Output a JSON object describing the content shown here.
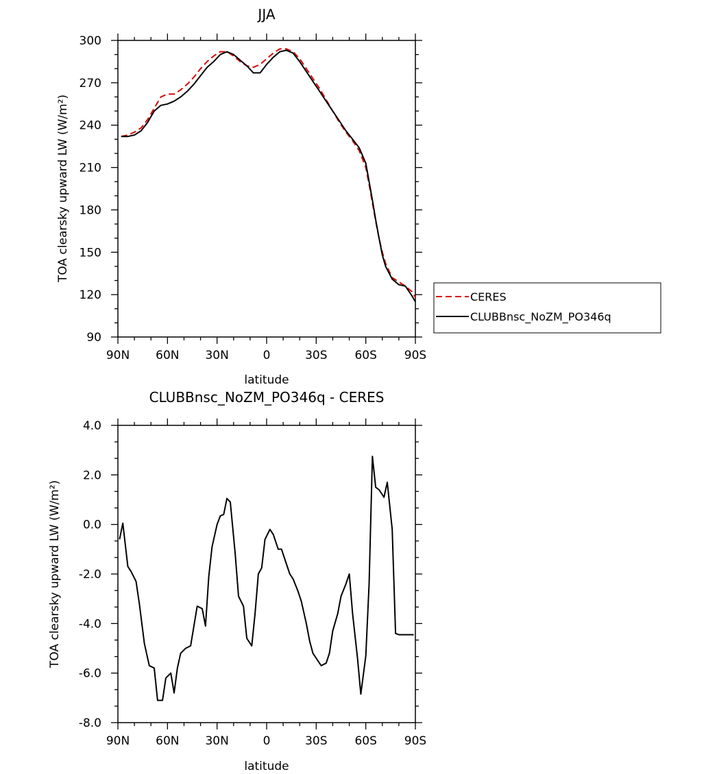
{
  "chart_data": [
    {
      "type": "line",
      "title": "JJA",
      "xlabel": "latitude",
      "ylabel": "TOA clearsky upward LW (W/m²)",
      "ylim": [
        90,
        300
      ],
      "yticks": [
        "300",
        "270",
        "240",
        "210",
        "180",
        "150",
        "120",
        "90"
      ],
      "xlim": [
        90,
        -90
      ],
      "xticks": [
        "90N",
        "60N",
        "30N",
        "0",
        "30S",
        "60S",
        "90S"
      ],
      "legend_position": "right",
      "series": [
        {
          "name": "CERES",
          "color": "#dd0000",
          "dash": "dashed",
          "x": [
            88,
            84,
            80,
            76,
            72,
            68,
            64,
            60,
            56,
            52,
            48,
            44,
            40,
            36,
            32,
            28,
            24,
            20,
            16,
            12,
            8,
            4,
            0,
            -4,
            -8,
            -12,
            -16,
            -20,
            -24,
            -28,
            -32,
            -36,
            -40,
            -44,
            -48,
            -52,
            -56,
            -60,
            -62,
            -64,
            -66,
            -68,
            -70,
            -72,
            -76,
            -80,
            -84,
            -88,
            -90
          ],
          "y": [
            232,
            233,
            235,
            238,
            244,
            252,
            260,
            262,
            262,
            265,
            269,
            274,
            280,
            285,
            289,
            292,
            292,
            289,
            285,
            282,
            281,
            283,
            287,
            291,
            294,
            294,
            292,
            287,
            280,
            273,
            266,
            258,
            250,
            242,
            235,
            229,
            222,
            210,
            198,
            185,
            172,
            160,
            150,
            142,
            132,
            129,
            126,
            122,
            118
          ]
        },
        {
          "name": "CLUBBnsc_NoZM_PO346q",
          "color": "#000000",
          "dash": "solid",
          "x": [
            88,
            84,
            80,
            76,
            72,
            68,
            64,
            60,
            56,
            52,
            48,
            44,
            40,
            36,
            32,
            28,
            24,
            20,
            16,
            12,
            8,
            4,
            0,
            -4,
            -8,
            -12,
            -16,
            -20,
            -24,
            -28,
            -32,
            -36,
            -40,
            -44,
            -48,
            -52,
            -56,
            -60,
            -62,
            -64,
            -66,
            -68,
            -70,
            -72,
            -76,
            -80,
            -84,
            -88,
            -90
          ],
          "y": [
            232,
            232,
            233,
            236,
            242,
            250,
            254,
            255,
            257,
            260,
            264,
            269,
            275,
            281,
            285,
            290,
            292,
            290,
            286,
            282,
            277,
            277,
            283,
            288,
            292,
            293,
            291,
            285,
            278,
            271,
            264,
            257,
            250,
            243,
            236,
            230,
            224,
            213,
            200,
            187,
            173,
            160,
            148,
            140,
            131,
            127,
            126,
            119,
            115
          ]
        }
      ]
    },
    {
      "type": "line",
      "title": "CLUBBnsc_NoZM_PO346q - CERES",
      "xlabel": "latitude",
      "ylabel": "TOA clearsky upward LW (W/m²)",
      "ylim": [
        -8.0,
        4.0
      ],
      "yticks": [
        "4.0",
        "2.0",
        "0.0",
        "-2.0",
        "-4.0",
        "-6.0",
        "-8.0"
      ],
      "xlim": [
        90,
        -90
      ],
      "xticks": [
        "90N",
        "60N",
        "30N",
        "0",
        "30S",
        "60S",
        "90S"
      ],
      "series": [
        {
          "color": "#000000",
          "dash": "solid",
          "x": [
            89,
            87,
            84,
            82,
            79,
            77,
            74,
            71,
            68,
            66,
            63,
            61,
            58,
            56,
            54,
            52,
            49,
            46,
            44,
            42,
            39,
            37,
            35,
            33,
            30,
            28,
            26,
            24,
            22,
            19,
            17,
            14,
            12,
            9,
            7,
            5,
            3,
            1,
            -2,
            -4,
            -7,
            -9,
            -12,
            -14,
            -16,
            -19,
            -21,
            -24,
            -26,
            -28,
            -31,
            -33,
            -36,
            -38,
            -40,
            -43,
            -45,
            -48,
            -50,
            -52,
            -55,
            -57,
            -60,
            -62,
            -64,
            -66,
            -68,
            -71,
            -73,
            -76,
            -78,
            -80,
            -82,
            -85,
            -87,
            -89
          ],
          "y": [
            -0.6,
            0.05,
            -1.7,
            -1.9,
            -2.3,
            -3.2,
            -4.8,
            -5.7,
            -5.8,
            -7.1,
            -7.1,
            -6.2,
            -6.0,
            -6.8,
            -5.8,
            -5.2,
            -5.0,
            -4.9,
            -4.1,
            -3.3,
            -3.4,
            -4.1,
            -2.1,
            -0.9,
            0.0,
            0.35,
            0.4,
            1.05,
            0.9,
            -1.2,
            -2.9,
            -3.3,
            -4.6,
            -4.9,
            -3.6,
            -2.0,
            -1.75,
            -0.6,
            -0.2,
            -0.4,
            -1.0,
            -1.0,
            -1.6,
            -2.0,
            -2.2,
            -2.7,
            -3.1,
            -4.0,
            -4.7,
            -5.2,
            -5.5,
            -5.7,
            -5.6,
            -5.2,
            -4.3,
            -3.6,
            -2.9,
            -2.4,
            -2.0,
            -3.6,
            -5.4,
            -6.85,
            -5.3,
            -2.4,
            2.75,
            1.5,
            1.4,
            1.1,
            1.7,
            -0.2,
            -4.4,
            -4.45,
            -4.45,
            -4.45,
            -4.45,
            -4.45
          ]
        }
      ]
    }
  ]
}
